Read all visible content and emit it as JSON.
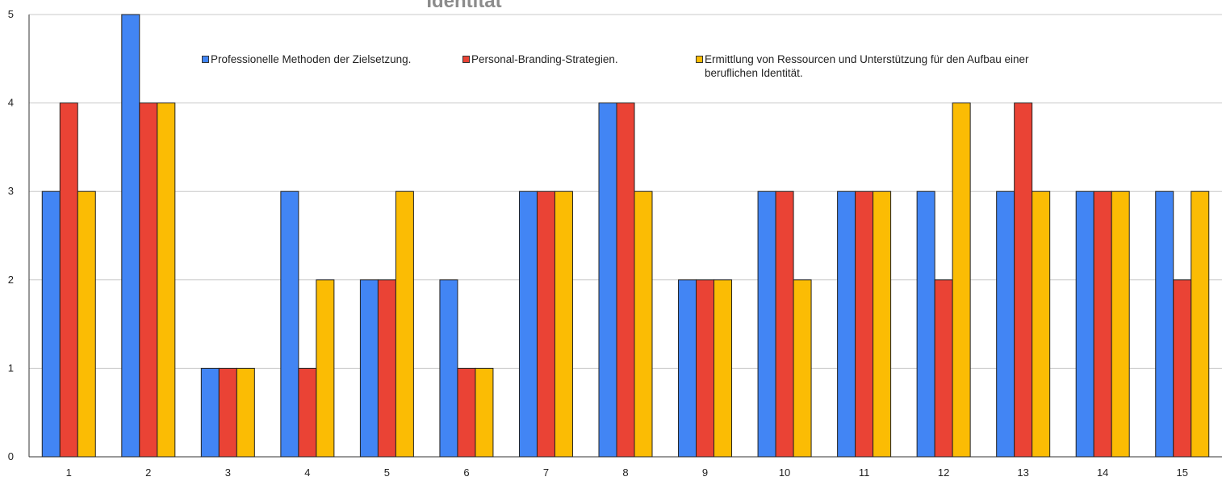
{
  "chart_data": {
    "type": "bar",
    "title": "Identität",
    "categories": [
      "1",
      "2",
      "3",
      "4",
      "5",
      "6",
      "7",
      "8",
      "9",
      "10",
      "11",
      "12",
      "13",
      "14",
      "15"
    ],
    "series": [
      {
        "name": "Professionelle Methoden der Zielsetzung.",
        "color": "#4285f4",
        "values": [
          3,
          5,
          1,
          3,
          2,
          2,
          3,
          4,
          2,
          3,
          3,
          3,
          3,
          3,
          3
        ]
      },
      {
        "name": "Personal-Branding-Strategien.",
        "color": "#ea4335",
        "values": [
          4,
          4,
          1,
          1,
          2,
          1,
          3,
          4,
          2,
          3,
          3,
          2,
          4,
          3,
          2
        ]
      },
      {
        "name": "Ermittlung von Ressourcen und Unterstützung für den Aufbau einer beruflichen Identität.",
        "color": "#fbbc04",
        "values": [
          3,
          4,
          1,
          2,
          3,
          1,
          3,
          3,
          2,
          2,
          3,
          4,
          3,
          3,
          3
        ]
      }
    ],
    "ylim": [
      0,
      5
    ],
    "yticks": [
      0,
      1,
      2,
      3,
      4,
      5
    ],
    "grid": true,
    "legend_position": "top"
  }
}
